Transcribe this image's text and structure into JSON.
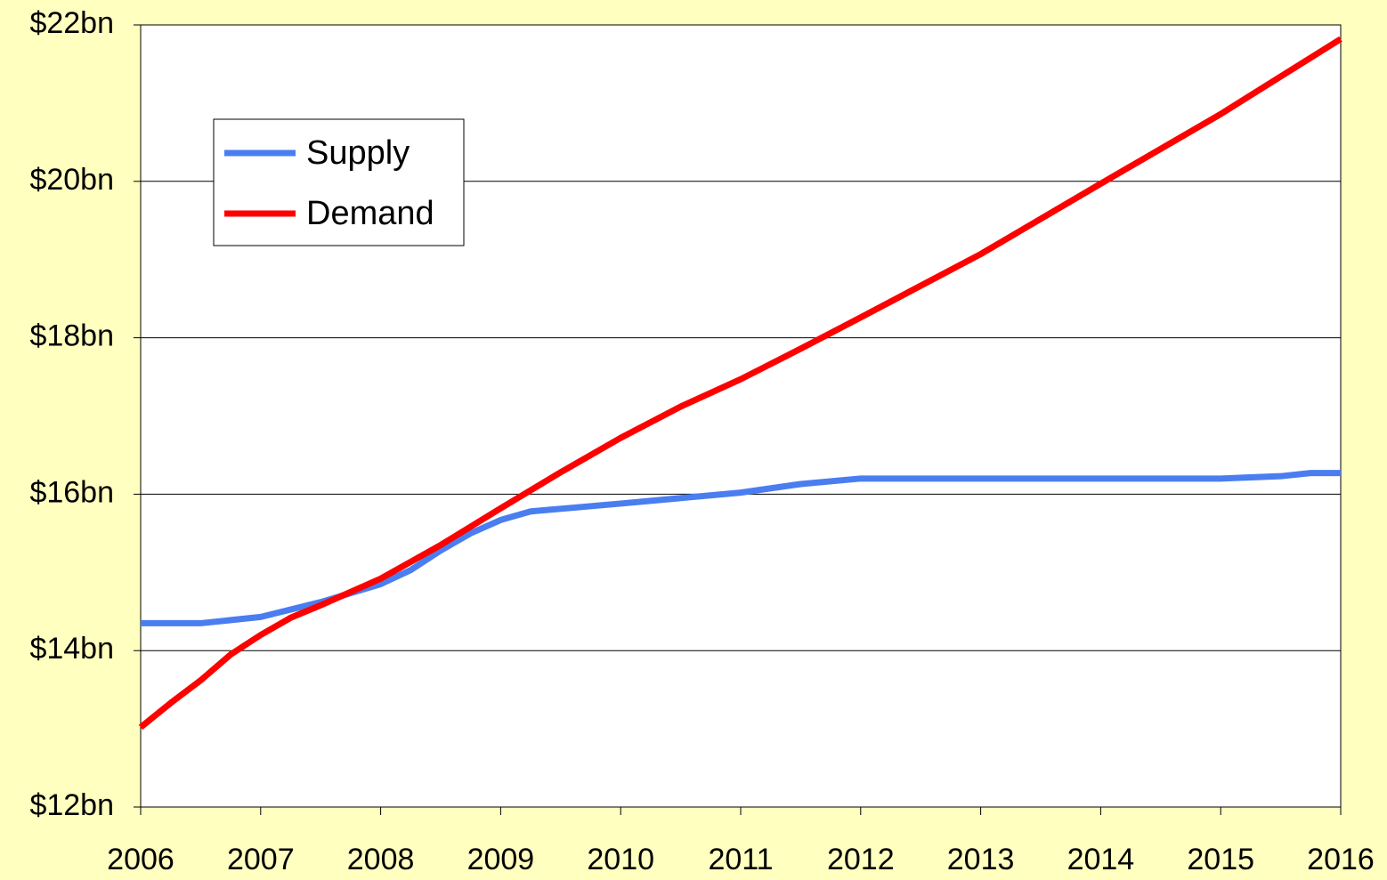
{
  "chart_data": {
    "type": "line",
    "xlim": [
      2006,
      2016
    ],
    "xticks": [
      2006,
      2007,
      2008,
      2009,
      2010,
      2011,
      2012,
      2013,
      2014,
      2015,
      2016
    ],
    "ylim": [
      12,
      22
    ],
    "yticks": [
      {
        "value": 12,
        "label": "$12bn"
      },
      {
        "value": 14,
        "label": "$14bn"
      },
      {
        "value": 16,
        "label": "$16bn"
      },
      {
        "value": 18,
        "label": "$18bn"
      },
      {
        "value": 20,
        "label": "$20bn"
      },
      {
        "value": 22,
        "label": "$22bn"
      }
    ],
    "grid": true,
    "legend": "upper left",
    "series": [
      {
        "name": "Supply",
        "color": "#4a7ef0",
        "x": [
          2006,
          2006.5,
          2007,
          2007.5,
          2008,
          2008.25,
          2008.5,
          2008.75,
          2009,
          2009.25,
          2010,
          2011,
          2011.5,
          2012,
          2015,
          2015.5,
          2015.75,
          2016
        ],
        "values": [
          14.35,
          14.35,
          14.43,
          14.62,
          14.85,
          15.03,
          15.28,
          15.5,
          15.67,
          15.78,
          15.88,
          16.02,
          16.13,
          16.2,
          16.2,
          16.23,
          16.27,
          16.27
        ]
      },
      {
        "name": "Demand",
        "color": "#ff0000",
        "x": [
          2006,
          2006.25,
          2006.5,
          2006.75,
          2007,
          2007.25,
          2007.5,
          2008,
          2008.5,
          2009,
          2009.5,
          2010,
          2010.5,
          2011,
          2011.5,
          2012,
          2013,
          2014,
          2015,
          2016
        ],
        "values": [
          13.02,
          13.33,
          13.62,
          13.95,
          14.2,
          14.42,
          14.58,
          14.92,
          15.35,
          15.82,
          16.28,
          16.72,
          17.12,
          17.47,
          17.86,
          18.26,
          19.07,
          19.97,
          20.86,
          21.82
        ]
      }
    ]
  }
}
